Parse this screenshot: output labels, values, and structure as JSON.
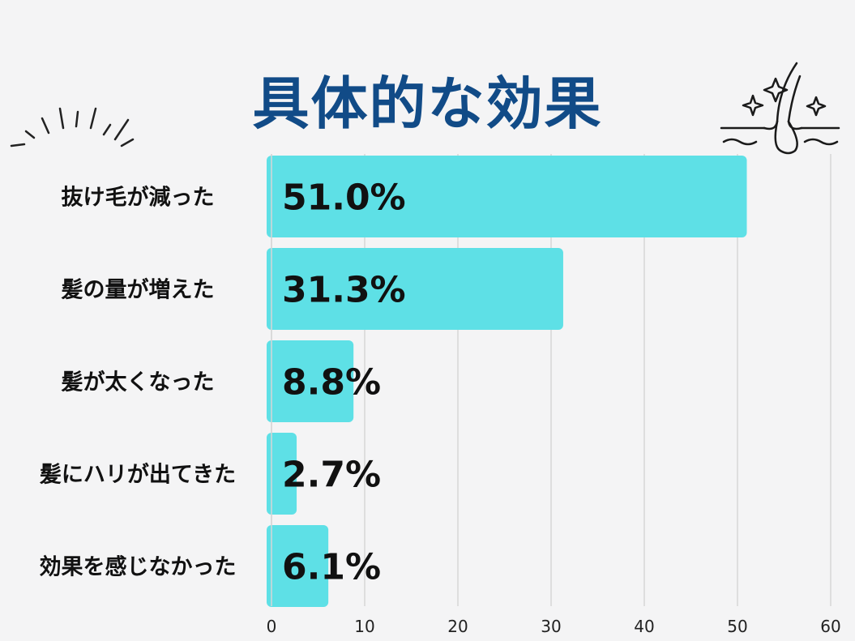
{
  "title": "具体的な効果",
  "chart_data": {
    "type": "bar",
    "orientation": "horizontal",
    "categories": [
      "抜け毛が減った",
      "髪の量が増えた",
      "髪が太くなった",
      "髪にハリが出てきた",
      "効果を感じなかった"
    ],
    "values": [
      51.0,
      31.3,
      8.8,
      2.7,
      6.1
    ],
    "data_labels": [
      "51.0%",
      "31.3%",
      "8.8%",
      "2.7%",
      "6.1%"
    ],
    "x_ticks": [
      "0",
      "10",
      "20",
      "30",
      "40",
      "50",
      "60"
    ],
    "xlim": [
      0,
      60
    ],
    "grid": true,
    "bar_color": "#5ee0e6",
    "grid_color": "#d6d6d6"
  },
  "colors": {
    "title": "#114b87",
    "background": "#f4f4f5",
    "text": "#111111"
  },
  "icons": [
    "burst-lines-icon",
    "hair-follicle-sparkle-icon"
  ]
}
